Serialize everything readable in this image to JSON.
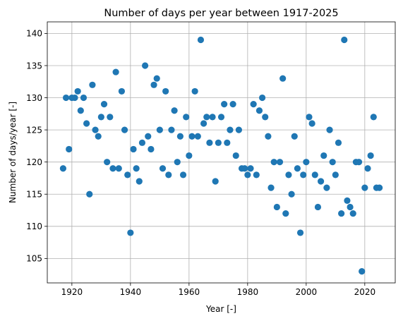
{
  "chart_data": {
    "type": "scatter",
    "title": "Number of days per year between 1917-2025",
    "xlabel": "Year [-]",
    "ylabel": "Number of days/year [-]",
    "xlim": [
      1911.6,
      2030.4
    ],
    "ylim": [
      101.2,
      141.8
    ],
    "xticks": [
      1920,
      1940,
      1960,
      1980,
      2000,
      2020
    ],
    "yticks": [
      105,
      110,
      115,
      120,
      125,
      130,
      135,
      140
    ],
    "grid": true,
    "marker_color": "#1f77b4",
    "series": [
      {
        "x": [
          1917,
          1918,
          1919,
          1920,
          1921,
          1922,
          1923,
          1924,
          1925,
          1926,
          1927,
          1928,
          1929,
          1930,
          1931,
          1932,
          1933,
          1934,
          1935,
          1936,
          1937,
          1938,
          1939,
          1940,
          1941,
          1942,
          1943,
          1944,
          1945,
          1946,
          1947,
          1948,
          1949,
          1950,
          1951,
          1952,
          1953,
          1954,
          1955,
          1956,
          1957,
          1958,
          1959,
          1960,
          1961,
          1962,
          1963,
          1964,
          1965,
          1966,
          1967,
          1968,
          1969,
          1970,
          1971,
          1972,
          1973,
          1974,
          1975,
          1976,
          1977,
          1978,
          1979,
          1980,
          1981,
          1982,
          1983,
          1984,
          1985,
          1986,
          1987,
          1988,
          1989,
          1990,
          1991,
          1992,
          1993,
          1994,
          1995,
          1996,
          1997,
          1998,
          1999,
          2000,
          2001,
          2002,
          2003,
          2004,
          2005,
          2006,
          2007,
          2008,
          2009,
          2010,
          2011,
          2012,
          2013,
          2014,
          2015,
          2016,
          2017,
          2018,
          2019,
          2020,
          2021,
          2022,
          2023,
          2024,
          2025
        ],
        "y": [
          119,
          130,
          122,
          130,
          130,
          131,
          128,
          130,
          126,
          115,
          132,
          125,
          124,
          127,
          129,
          120,
          127,
          119,
          134,
          119,
          131,
          125,
          118,
          109,
          122,
          119,
          117,
          123,
          135,
          124,
          122,
          132,
          133,
          125,
          119,
          131,
          118,
          125,
          128,
          120,
          124,
          118,
          127,
          121,
          124,
          131,
          124,
          139,
          126,
          127,
          123,
          127,
          117,
          123,
          127,
          129,
          123,
          125,
          129,
          121,
          125,
          119,
          119,
          118,
          119,
          129,
          118,
          128,
          130,
          127,
          124,
          116,
          120,
          113,
          120,
          133,
          112,
          118,
          115,
          124,
          119,
          109,
          118,
          120,
          127,
          126,
          118,
          113,
          117,
          121,
          116,
          125,
          120,
          118,
          123,
          112,
          139,
          114,
          113,
          112,
          120,
          120,
          103,
          116,
          119,
          121,
          127,
          116,
          116
        ]
      }
    ]
  }
}
